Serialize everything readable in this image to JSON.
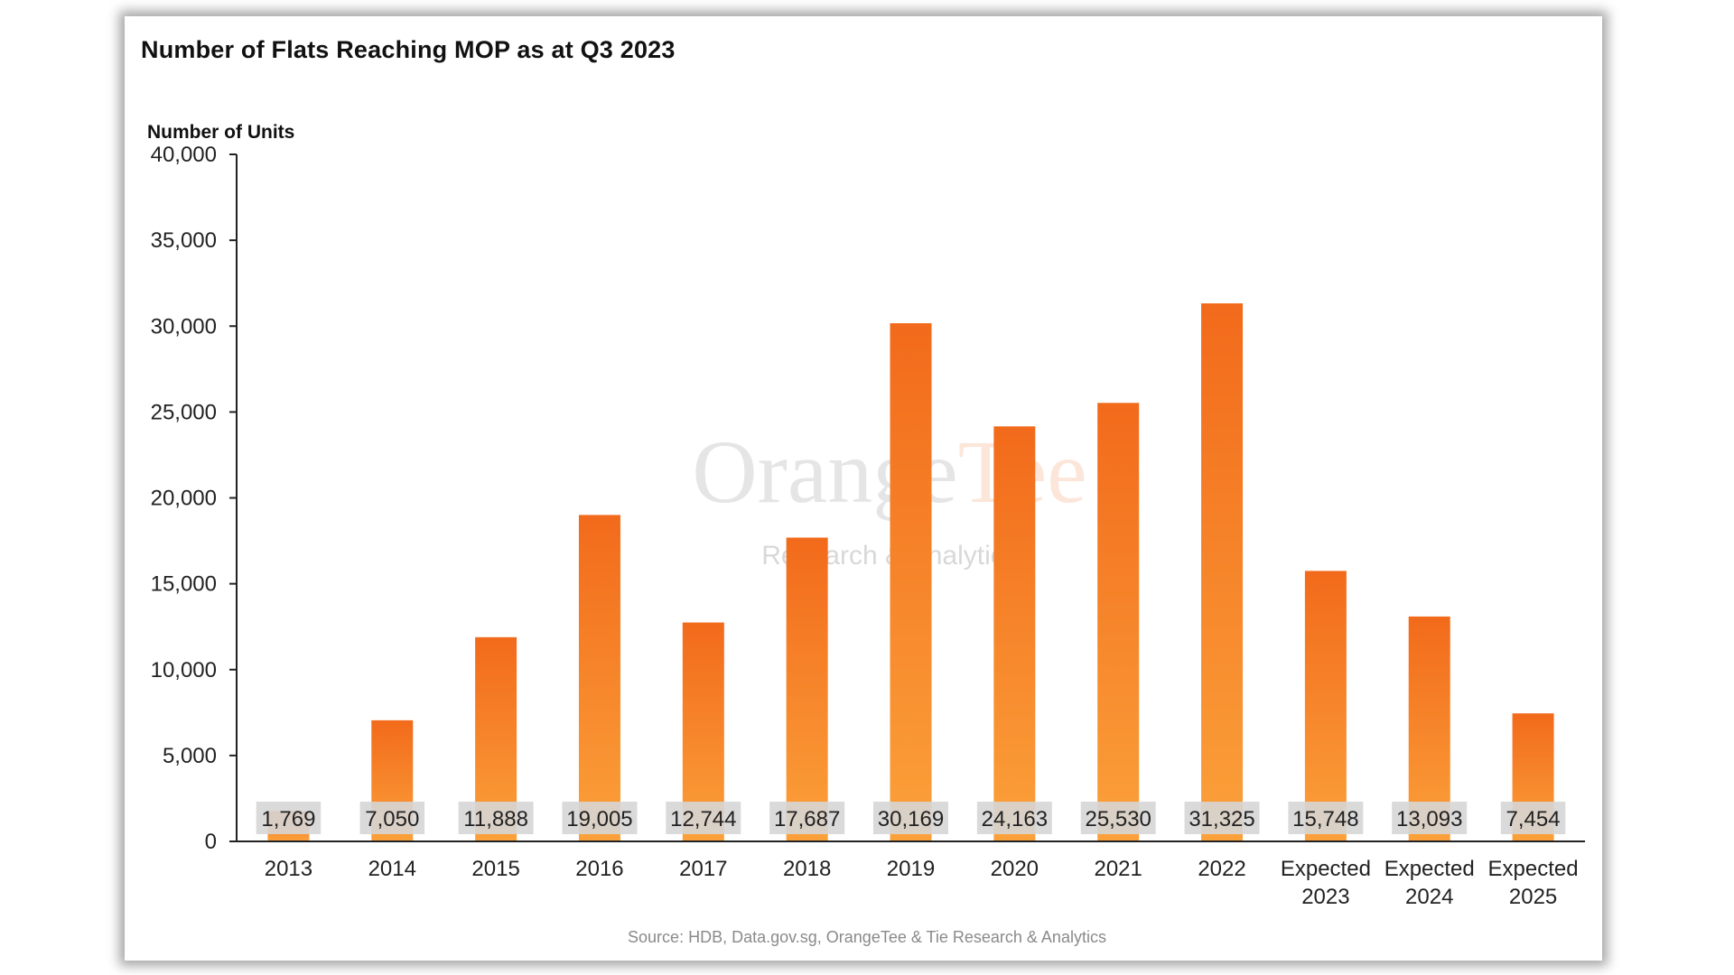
{
  "chart_data": {
    "type": "bar",
    "title": "Number of Flats Reaching MOP as at Q3 2023",
    "ylabel": "Number of Units",
    "xlabel": "",
    "ylim": [
      0,
      40000
    ],
    "yticks": [
      0,
      5000,
      10000,
      15000,
      20000,
      25000,
      30000,
      35000,
      40000
    ],
    "ytick_labels": [
      "0",
      "5,000",
      "10,000",
      "15,000",
      "20,000",
      "25,000",
      "30,000",
      "35,000",
      "40,000"
    ],
    "categories": [
      "2013",
      "2014",
      "2015",
      "2016",
      "2017",
      "2018",
      "2019",
      "2020",
      "2021",
      "2022",
      "Expected 2023",
      "Expected 2024",
      "Expected 2025"
    ],
    "values": [
      1769,
      7050,
      11888,
      19005,
      12744,
      17687,
      30169,
      24163,
      25530,
      31325,
      15748,
      13093,
      7454
    ],
    "data_labels": [
      "1,769",
      "7,050",
      "11,888",
      "19,005",
      "12,744",
      "17,687",
      "30,169",
      "24,163",
      "25,530",
      "31,325",
      "15,748",
      "13,093",
      "7,454"
    ],
    "grid": false,
    "legend": "none",
    "colors": {
      "bar_top": "#f26a1b",
      "bar_bottom": "#fba13a",
      "label_bg": "#d6d6d6"
    }
  },
  "watermark": {
    "brand_part1": "Orange",
    "brand_part2": "Tee",
    "tagline": "Research & Analytics"
  },
  "source": "Source: HDB, Data.gov.sg, OrangeTee & Tie Research & Analytics"
}
